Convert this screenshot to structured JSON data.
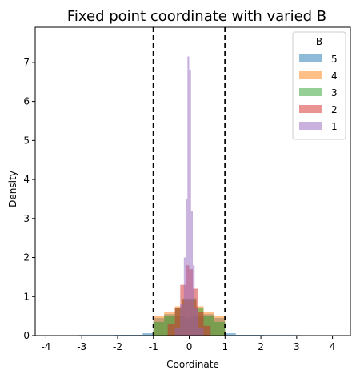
{
  "chart_data": {
    "type": "histogram",
    "title": "Fixed point coordinate with varied B",
    "xlabel": "Coordinate",
    "ylabel": "Density",
    "xlim": [
      -4.3,
      4.5
    ],
    "ylim": [
      0,
      7.9
    ],
    "xticks": [
      "-4",
      "-3",
      "-2",
      "-1",
      "0",
      "1",
      "2",
      "3",
      "4"
    ],
    "yticks": [
      "0",
      "1",
      "2",
      "3",
      "4",
      "5",
      "6",
      "7"
    ],
    "vlines": [
      -1,
      1
    ],
    "legend": {
      "title": "B",
      "placement": "top-right",
      "entries": [
        {
          "label": "5",
          "color": "#1f77b4"
        },
        {
          "label": "4",
          "color": "#ff7f0e"
        },
        {
          "label": "3",
          "color": "#2ca02c"
        },
        {
          "label": "2",
          "color": "#d62728"
        },
        {
          "label": "1",
          "color": "#9467bd"
        }
      ]
    },
    "series": [
      {
        "name": "5",
        "color": "#1f77b4",
        "alpha": 0.5,
        "bins": [
          {
            "x0": -4.1,
            "x1": -3.1,
            "density": 0.01
          },
          {
            "x0": -3.1,
            "x1": -2.1,
            "density": 0.015
          },
          {
            "x0": -2.1,
            "x1": -1.3,
            "density": 0.02
          },
          {
            "x0": -1.3,
            "x1": -1.0,
            "density": 0.06
          },
          {
            "x0": -1.0,
            "x1": -0.7,
            "density": 0.45
          },
          {
            "x0": -0.7,
            "x1": -0.4,
            "density": 0.55
          },
          {
            "x0": -0.4,
            "x1": -0.1,
            "density": 0.5
          },
          {
            "x0": -0.1,
            "x1": 0.1,
            "density": 0.45
          },
          {
            "x0": 0.1,
            "x1": 0.4,
            "density": 0.5
          },
          {
            "x0": 0.4,
            "x1": 0.7,
            "density": 0.55
          },
          {
            "x0": 0.7,
            "x1": 1.0,
            "density": 0.45
          },
          {
            "x0": 1.0,
            "x1": 1.3,
            "density": 0.06
          },
          {
            "x0": 1.3,
            "x1": 2.1,
            "density": 0.02
          },
          {
            "x0": 2.1,
            "x1": 3.1,
            "density": 0.015
          },
          {
            "x0": 3.1,
            "x1": 4.1,
            "density": 0.01
          }
        ]
      },
      {
        "name": "4",
        "color": "#ff7f0e",
        "alpha": 0.5,
        "bins": [
          {
            "x0": -1.0,
            "x1": -0.7,
            "density": 0.5
          },
          {
            "x0": -0.7,
            "x1": -0.4,
            "density": 0.6
          },
          {
            "x0": -0.4,
            "x1": -0.2,
            "density": 0.75
          },
          {
            "x0": -0.2,
            "x1": 0.0,
            "density": 0.9
          },
          {
            "x0": 0.0,
            "x1": 0.2,
            "density": 0.9
          },
          {
            "x0": 0.2,
            "x1": 0.4,
            "density": 0.75
          },
          {
            "x0": 0.4,
            "x1": 0.7,
            "density": 0.6
          },
          {
            "x0": 0.7,
            "x1": 1.0,
            "density": 0.5
          }
        ]
      },
      {
        "name": "3",
        "color": "#2ca02c",
        "alpha": 0.5,
        "bins": [
          {
            "x0": -1.0,
            "x1": -0.7,
            "density": 0.35
          },
          {
            "x0": -0.7,
            "x1": -0.4,
            "density": 0.5
          },
          {
            "x0": -0.4,
            "x1": -0.2,
            "density": 0.7
          },
          {
            "x0": -0.2,
            "x1": 0.0,
            "density": 0.95
          },
          {
            "x0": 0.0,
            "x1": 0.2,
            "density": 0.95
          },
          {
            "x0": 0.2,
            "x1": 0.4,
            "density": 0.7
          },
          {
            "x0": 0.4,
            "x1": 0.7,
            "density": 0.5
          },
          {
            "x0": 0.7,
            "x1": 1.0,
            "density": 0.35
          }
        ]
      },
      {
        "name": "2",
        "color": "#d62728",
        "alpha": 0.5,
        "bins": [
          {
            "x0": -0.6,
            "x1": -0.4,
            "density": 0.3
          },
          {
            "x0": -0.4,
            "x1": -0.25,
            "density": 0.7
          },
          {
            "x0": -0.25,
            "x1": -0.1,
            "density": 1.3
          },
          {
            "x0": -0.1,
            "x1": 0.0,
            "density": 1.8
          },
          {
            "x0": 0.0,
            "x1": 0.1,
            "density": 1.7
          },
          {
            "x0": 0.1,
            "x1": 0.25,
            "density": 1.2
          },
          {
            "x0": 0.25,
            "x1": 0.4,
            "density": 0.6
          },
          {
            "x0": 0.4,
            "x1": 0.6,
            "density": 0.25
          }
        ]
      },
      {
        "name": "1",
        "color": "#9467bd",
        "alpha": 0.5,
        "bins": [
          {
            "x0": -0.4,
            "x1": -0.25,
            "density": 0.2
          },
          {
            "x0": -0.25,
            "x1": -0.15,
            "density": 0.8
          },
          {
            "x0": -0.15,
            "x1": -0.1,
            "density": 2.0
          },
          {
            "x0": -0.1,
            "x1": -0.05,
            "density": 3.5
          },
          {
            "x0": -0.05,
            "x1": 0.0,
            "density": 7.15
          },
          {
            "x0": 0.0,
            "x1": 0.05,
            "density": 6.8
          },
          {
            "x0": 0.05,
            "x1": 0.1,
            "density": 3.2
          },
          {
            "x0": 0.1,
            "x1": 0.15,
            "density": 1.8
          },
          {
            "x0": 0.15,
            "x1": 0.25,
            "density": 0.7
          },
          {
            "x0": 0.25,
            "x1": 0.4,
            "density": 0.2
          }
        ]
      }
    ]
  }
}
